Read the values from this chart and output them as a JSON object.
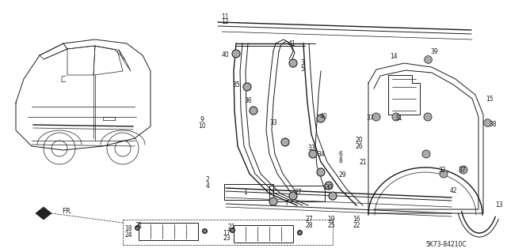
{
  "diagram_code": "5K73-84210C",
  "background_color": "#ffffff",
  "line_color": "#1a1a1a",
  "fig_width": 6.4,
  "fig_height": 3.19,
  "dpi": 100
}
